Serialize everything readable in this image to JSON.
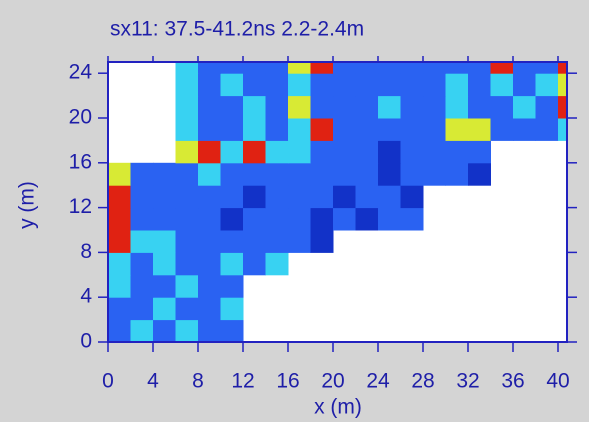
{
  "chart_data": {
    "type": "heatmap",
    "title": "sx11:  37.5-41.2ns  2.2-2.4m",
    "x_label": "x (m)",
    "y_label": "y (m)",
    "xlim": [
      0,
      40.8
    ],
    "ylim": [
      0,
      25
    ],
    "xticks": [
      0,
      4,
      8,
      12,
      16,
      20,
      24,
      28,
      32,
      36,
      40
    ],
    "yticks": [
      0,
      4,
      8,
      12,
      16,
      20,
      24
    ],
    "x": [
      1,
      3,
      5,
      7,
      9,
      11,
      13,
      15,
      17,
      19,
      21,
      23,
      25,
      27,
      29,
      31,
      33,
      35,
      37,
      39,
      41
    ],
    "y": [
      1,
      3,
      5,
      7,
      9,
      11,
      13,
      15,
      17,
      19,
      21,
      23,
      25
    ],
    "colors": [
      "#1232c8",
      "#2a62f2",
      "#38d2f2",
      "#d8ea34",
      "#e02212"
    ],
    "z": [
      [
        1,
        2,
        1,
        2,
        1,
        1,
        null,
        null,
        null,
        null,
        null,
        null,
        null,
        null,
        null,
        null,
        null,
        null,
        null,
        null,
        null
      ],
      [
        1,
        1,
        2,
        1,
        1,
        2,
        null,
        null,
        null,
        null,
        null,
        null,
        null,
        null,
        null,
        null,
        null,
        null,
        null,
        null,
        null
      ],
      [
        2,
        1,
        1,
        2,
        1,
        1,
        null,
        null,
        null,
        null,
        null,
        null,
        null,
        null,
        null,
        null,
        null,
        null,
        null,
        null,
        null
      ],
      [
        2,
        1,
        2,
        1,
        1,
        2,
        1,
        2,
        null,
        null,
        null,
        null,
        null,
        null,
        null,
        null,
        null,
        null,
        null,
        null,
        null
      ],
      [
        4,
        2,
        2,
        1,
        1,
        1,
        1,
        1,
        1,
        0,
        null,
        null,
        null,
        null,
        null,
        null,
        null,
        null,
        null,
        null,
        null
      ],
      [
        4,
        1,
        1,
        1,
        1,
        0,
        1,
        1,
        1,
        0,
        1,
        0,
        1,
        1,
        null,
        null,
        null,
        null,
        null,
        null,
        null
      ],
      [
        4,
        1,
        1,
        1,
        1,
        1,
        0,
        1,
        1,
        1,
        0,
        1,
        1,
        0,
        null,
        null,
        null,
        null,
        null,
        null,
        null
      ],
      [
        3,
        1,
        1,
        1,
        2,
        1,
        1,
        1,
        1,
        1,
        1,
        1,
        0,
        1,
        1,
        1,
        0,
        null,
        null,
        null,
        null
      ],
      [
        null,
        null,
        null,
        3,
        4,
        2,
        4,
        2,
        2,
        1,
        1,
        1,
        0,
        1,
        1,
        1,
        1,
        null,
        null,
        null,
        null
      ],
      [
        null,
        null,
        null,
        2,
        1,
        1,
        2,
        1,
        2,
        4,
        1,
        1,
        1,
        1,
        1,
        3,
        3,
        1,
        1,
        1,
        2
      ],
      [
        null,
        null,
        null,
        2,
        1,
        1,
        2,
        1,
        3,
        1,
        1,
        1,
        2,
        1,
        1,
        2,
        1,
        1,
        2,
        1,
        4
      ],
      [
        null,
        null,
        null,
        2,
        1,
        2,
        1,
        1,
        2,
        1,
        1,
        1,
        1,
        1,
        1,
        2,
        1,
        2,
        1,
        2,
        3
      ],
      [
        null,
        null,
        null,
        2,
        1,
        1,
        1,
        1,
        3,
        4,
        1,
        1,
        1,
        1,
        1,
        1,
        1,
        4,
        1,
        1,
        4
      ]
    ]
  }
}
